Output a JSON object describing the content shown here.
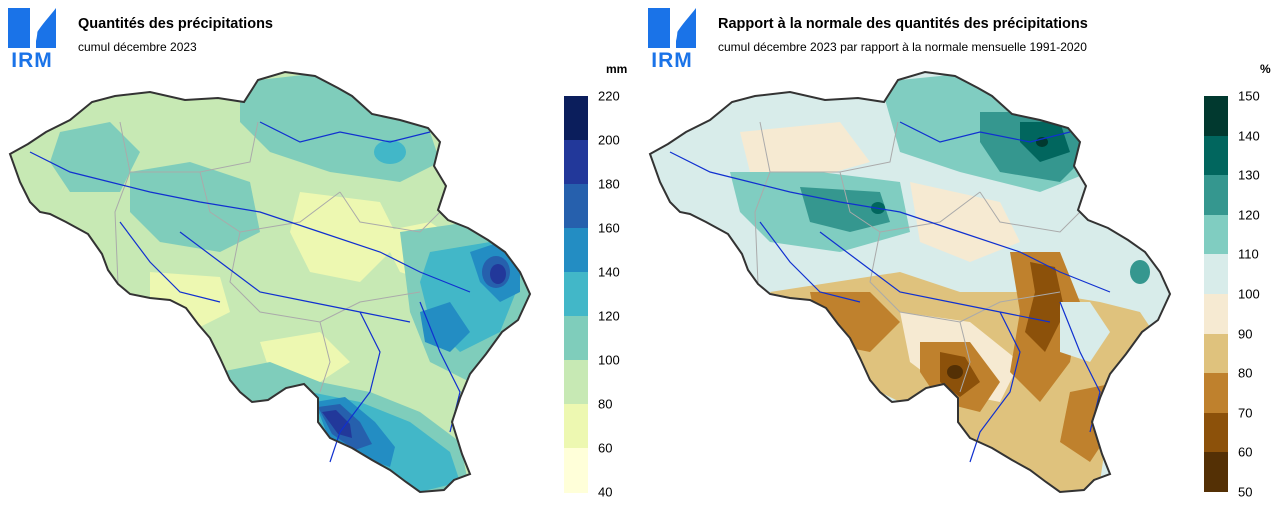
{
  "logo": {
    "text": "IRM"
  },
  "left_map": {
    "title": "Quantités des précipitations",
    "subtitle": "cumul décembre 2023",
    "unit": "mm",
    "legend": {
      "ticks": [
        "220",
        "200",
        "180",
        "160",
        "140",
        "120",
        "100",
        "80",
        "60",
        "40"
      ],
      "bins": [
        {
          "range": [
            200,
            220
          ],
          "color": "#0b1e5c"
        },
        {
          "range": [
            180,
            200
          ],
          "color": "#22389a"
        },
        {
          "range": [
            160,
            180
          ],
          "color": "#2660ad"
        },
        {
          "range": [
            140,
            160
          ],
          "color": "#238dc3"
        },
        {
          "range": [
            120,
            140
          ],
          "color": "#42b7c8"
        },
        {
          "range": [
            100,
            120
          ],
          "color": "#7fcdbb"
        },
        {
          "range": [
            80,
            100
          ],
          "color": "#c7e9b4"
        },
        {
          "range": [
            60,
            80
          ],
          "color": "#edf8b1"
        },
        {
          "range": [
            40,
            60
          ],
          "color": "#ffffd9"
        }
      ]
    }
  },
  "right_map": {
    "title": "Rapport à la normale des quantités des précipitations",
    "subtitle": "cumul décembre 2023 par rapport à la normale mensuelle 1991-2020",
    "unit": "%",
    "legend": {
      "ticks": [
        "150",
        "140",
        "130",
        "120",
        "110",
        "100",
        "90",
        "80",
        "70",
        "60",
        "50"
      ],
      "bins": [
        {
          "range": [
            140,
            150
          ],
          "color": "#01392f"
        },
        {
          "range": [
            130,
            140
          ],
          "color": "#01665e"
        },
        {
          "range": [
            120,
            130
          ],
          "color": "#35978f"
        },
        {
          "range": [
            110,
            120
          ],
          "color": "#80cdc1"
        },
        {
          "range": [
            100,
            110
          ],
          "color": "#d8ecea"
        },
        {
          "range": [
            90,
            100
          ],
          "color": "#f6ead2"
        },
        {
          "range": [
            80,
            90
          ],
          "color": "#dfc27d"
        },
        {
          "range": [
            70,
            80
          ],
          "color": "#bf812d"
        },
        {
          "range": [
            60,
            70
          ],
          "color": "#8c510a"
        },
        {
          "range": [
            50,
            60
          ],
          "color": "#543005"
        }
      ]
    }
  }
}
